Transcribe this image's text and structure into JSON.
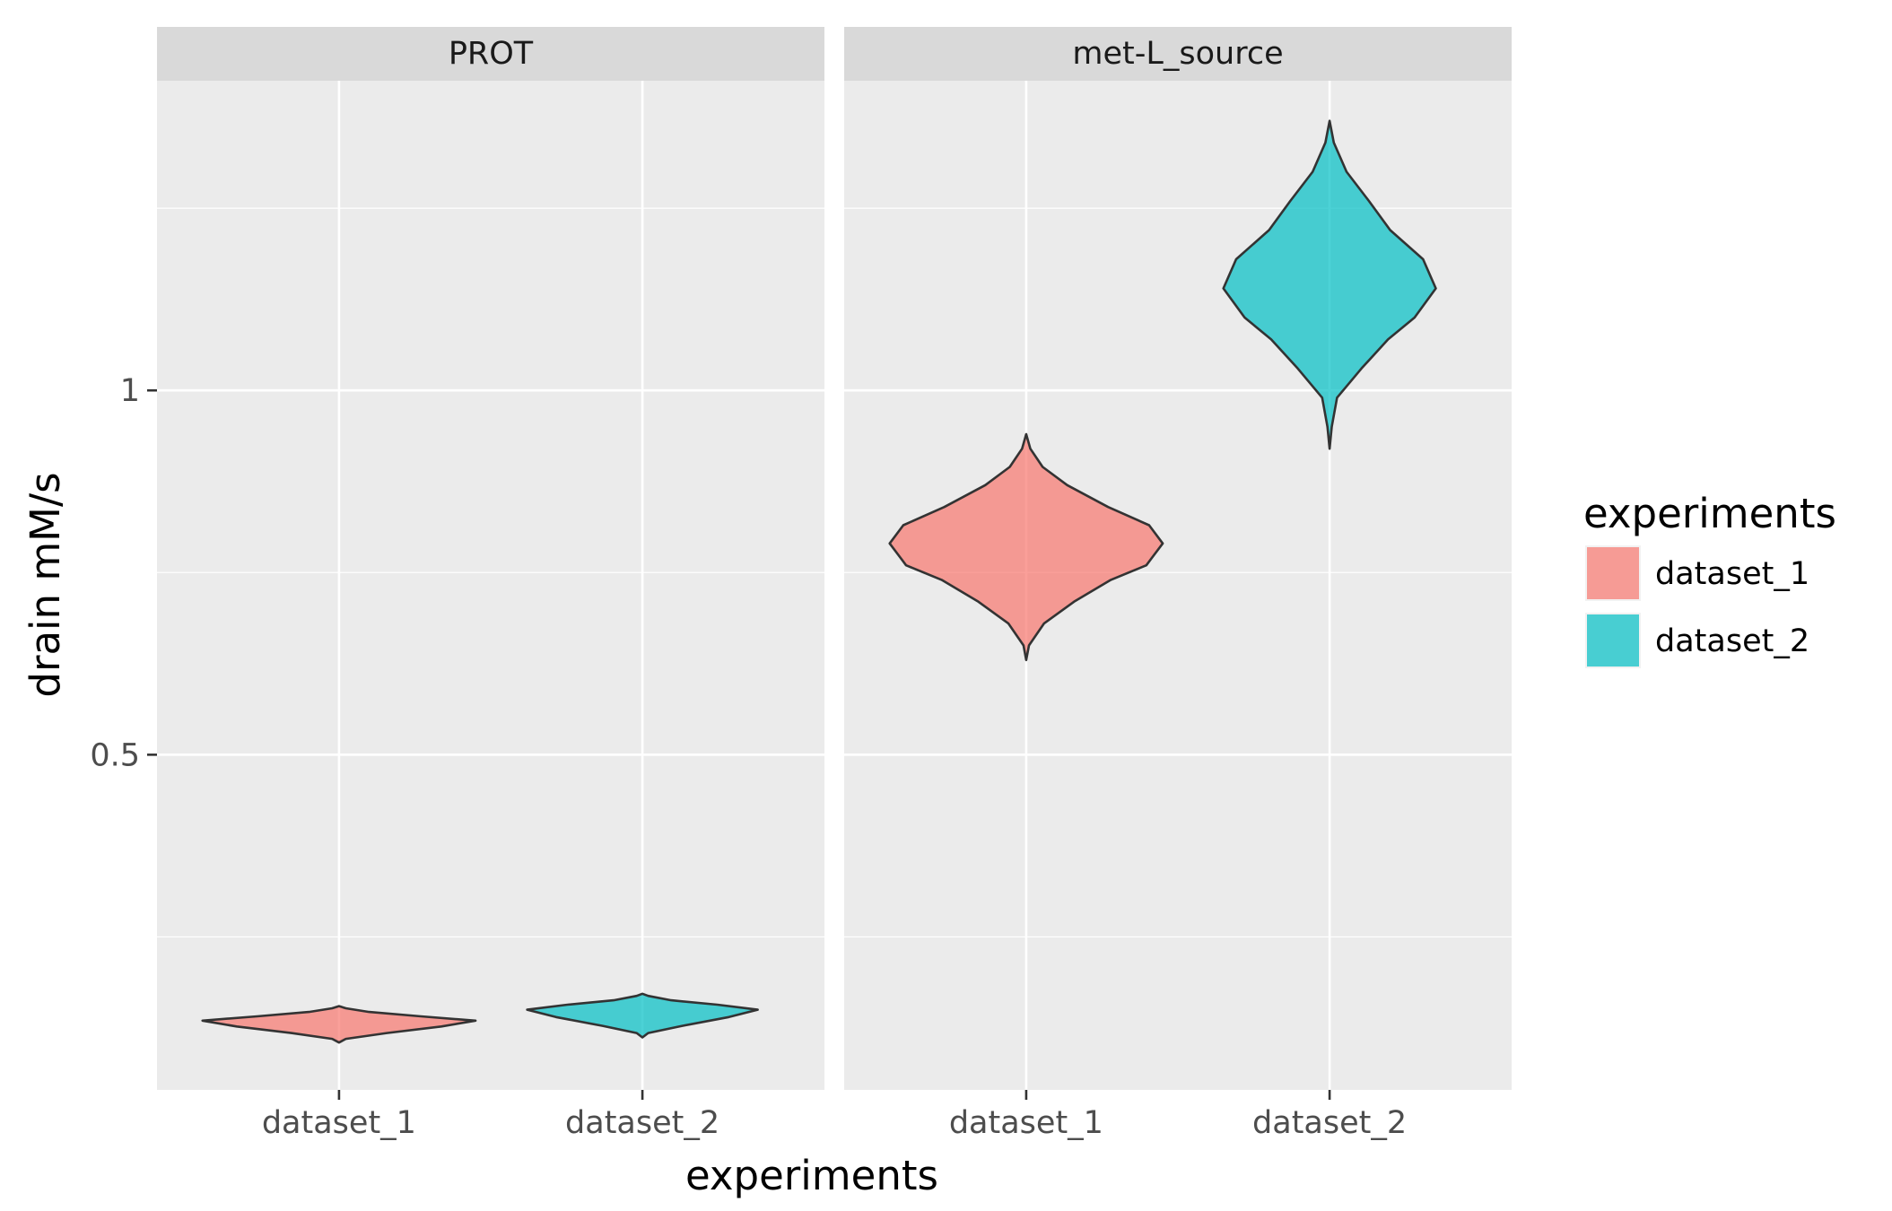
{
  "chart_data": {
    "type": "violin",
    "xlabel": "experiments",
    "ylabel": "drain mM/s",
    "categories": [
      "dataset_1",
      "dataset_2"
    ],
    "ylim": [
      0.04,
      1.425
    ],
    "y_ticks": [
      0.5,
      1
    ],
    "y_tick_labels": [
      "0.5",
      "1"
    ],
    "y_minor_gridlines": [
      0.25,
      0.75,
      1.25
    ],
    "grid": true,
    "legend": {
      "title": "experiments",
      "position": "right",
      "entries": [
        {
          "label": "dataset_1",
          "color": "#F8766D"
        },
        {
          "label": "dataset_2",
          "color": "#00BFC4"
        }
      ]
    },
    "colors": {
      "dataset_1": "#F8766D",
      "dataset_2": "#00BFC4",
      "panel_background": "#EBEBEB",
      "strip_background": "#D9D9D9",
      "outline": "#333333"
    },
    "panels": [
      {
        "strip": "PROT",
        "violins": [
          {
            "category": "dataset_1",
            "min": 0.105,
            "max": 0.155,
            "mode": 0.135,
            "width": 0.9,
            "profile": [
              [
                0.105,
                0.0
              ],
              [
                0.11,
                0.05
              ],
              [
                0.118,
                0.35
              ],
              [
                0.127,
                0.75
              ],
              [
                0.135,
                1.0
              ],
              [
                0.141,
                0.6
              ],
              [
                0.147,
                0.22
              ],
              [
                0.152,
                0.05
              ],
              [
                0.155,
                0.0
              ]
            ]
          },
          {
            "category": "dataset_2",
            "min": 0.112,
            "max": 0.172,
            "mode": 0.15,
            "width": 0.76,
            "profile": [
              [
                0.112,
                0.0
              ],
              [
                0.118,
                0.05
              ],
              [
                0.128,
                0.35
              ],
              [
                0.14,
                0.75
              ],
              [
                0.15,
                1.0
              ],
              [
                0.157,
                0.65
              ],
              [
                0.163,
                0.25
              ],
              [
                0.169,
                0.05
              ],
              [
                0.172,
                0.0
              ]
            ]
          }
        ]
      },
      {
        "strip": "met-L_source",
        "violins": [
          {
            "category": "dataset_1",
            "min": 0.63,
            "max": 0.94,
            "mode": 0.79,
            "width": 0.9,
            "profile": [
              [
                0.63,
                0.0
              ],
              [
                0.65,
                0.02
              ],
              [
                0.68,
                0.13
              ],
              [
                0.71,
                0.35
              ],
              [
                0.74,
                0.62
              ],
              [
                0.76,
                0.88
              ],
              [
                0.77,
                0.92
              ],
              [
                0.79,
                1.0
              ],
              [
                0.815,
                0.9
              ],
              [
                0.84,
                0.6
              ],
              [
                0.87,
                0.3
              ],
              [
                0.895,
                0.12
              ],
              [
                0.92,
                0.03
              ],
              [
                0.94,
                0.0
              ]
            ]
          },
          {
            "category": "dataset_2",
            "min": 0.92,
            "max": 1.37,
            "mode": 1.14,
            "width": 0.7,
            "profile": [
              [
                0.92,
                0.0
              ],
              [
                0.95,
                0.02
              ],
              [
                0.99,
                0.07
              ],
              [
                1.03,
                0.3
              ],
              [
                1.07,
                0.55
              ],
              [
                1.1,
                0.8
              ],
              [
                1.14,
                1.0
              ],
              [
                1.18,
                0.88
              ],
              [
                1.22,
                0.57
              ],
              [
                1.26,
                0.37
              ],
              [
                1.3,
                0.16
              ],
              [
                1.34,
                0.04
              ],
              [
                1.37,
                0.0
              ]
            ]
          }
        ]
      }
    ]
  }
}
